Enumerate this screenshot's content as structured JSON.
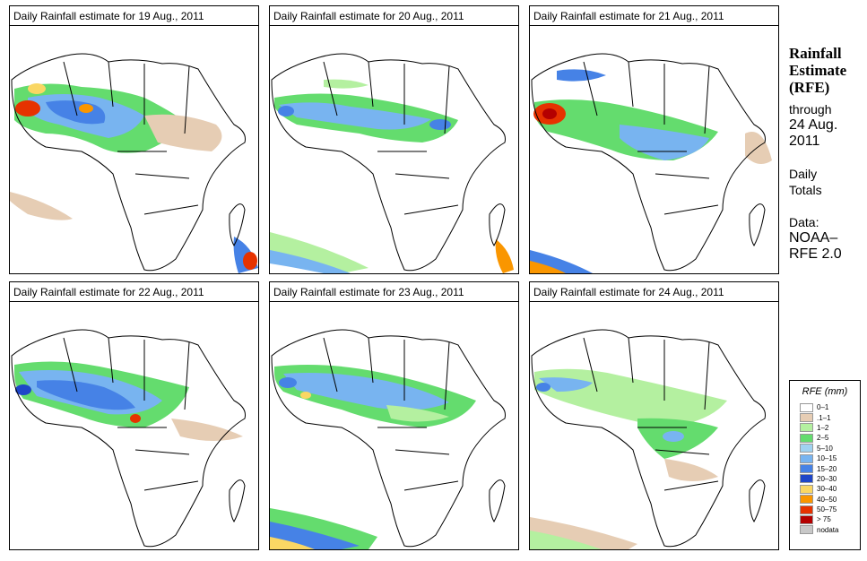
{
  "panels": [
    {
      "title": "Daily Rainfall estimate for  19 Aug., 2011",
      "map_label": "africa-rainfall-map-19-aug"
    },
    {
      "title": "Daily Rainfall estimate for  20 Aug., 2011",
      "map_label": "africa-rainfall-map-20-aug"
    },
    {
      "title": "Daily Rainfall estimate for  21 Aug., 2011",
      "map_label": "africa-rainfall-map-21-aug"
    },
    {
      "title": "Daily Rainfall estimate for  22 Aug., 2011",
      "map_label": "africa-rainfall-map-22-aug"
    },
    {
      "title": "Daily Rainfall estimate for  23 Aug., 2011",
      "map_label": "africa-rainfall-map-23-aug"
    },
    {
      "title": "Daily Rainfall estimate for  24 Aug., 2011",
      "map_label": "africa-rainfall-map-24-aug"
    }
  ],
  "info": {
    "heading_line1": "Rainfall",
    "heading_line2": "Estimate",
    "heading_line3": "(RFE)",
    "through": "through",
    "date_line1": "24 Aug.",
    "date_line2": "2011",
    "totals_line1": "Daily",
    "totals_line2": "Totals",
    "data_label": "Data:",
    "source_line1": "NOAA–",
    "source_line2": "RFE 2.0"
  },
  "legend": {
    "title": "RFE (mm)",
    "items": [
      {
        "label": "0–1",
        "color": "#ffffff"
      },
      {
        "label": ".1–1",
        "color": "#e6cdb4"
      },
      {
        "label": "1–2",
        "color": "#b4f0a0"
      },
      {
        "label": "2–5",
        "color": "#64dc6e"
      },
      {
        "label": "5–10",
        "color": "#a0d2f0"
      },
      {
        "label": "10–15",
        "color": "#78b4f0"
      },
      {
        "label": "15–20",
        "color": "#4682e6"
      },
      {
        "label": "20–30",
        "color": "#1e46c8"
      },
      {
        "label": "30–40",
        "color": "#fad764"
      },
      {
        "label": "40–50",
        "color": "#fa9600"
      },
      {
        "label": "50–75",
        "color": "#e63200"
      },
      {
        "label": "> 75",
        "color": "#b40000"
      },
      {
        "label": "nodata",
        "color": "#c8c8c8"
      }
    ]
  }
}
